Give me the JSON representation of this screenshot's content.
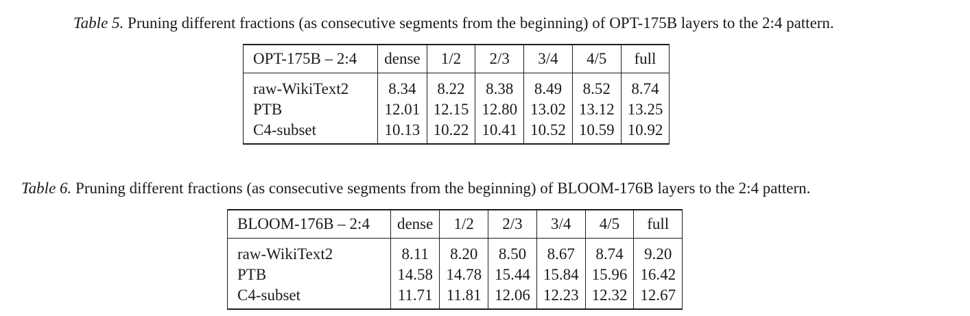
{
  "tables": [
    {
      "caption_tag": "Table 5.",
      "caption_text": " Pruning different fractions (as consecutive segments from the beginning) of OPT-175B layers to the 2:4 pattern.",
      "columns": [
        "OPT-175B – 2:4",
        "dense",
        "1/2",
        "2/3",
        "3/4",
        "4/5",
        "full"
      ],
      "rows": [
        [
          "raw-WikiText2",
          "8.34",
          "8.22",
          "8.38",
          "8.49",
          "8.52",
          "8.74"
        ],
        [
          "PTB",
          "12.01",
          "12.15",
          "12.80",
          "13.02",
          "13.12",
          "13.25"
        ],
        [
          "C4-subset",
          "10.13",
          "10.22",
          "10.41",
          "10.52",
          "10.59",
          "10.92"
        ]
      ]
    },
    {
      "caption_tag": "Table 6.",
      "caption_text": " Pruning different fractions (as consecutive segments from the beginning) of BLOOM-176B layers to the 2:4 pattern.",
      "columns": [
        "BLOOM-176B – 2:4",
        "dense",
        "1/2",
        "2/3",
        "3/4",
        "4/5",
        "full"
      ],
      "rows": [
        [
          "raw-WikiText2",
          "8.11",
          "8.20",
          "8.50",
          "8.67",
          "8.74",
          "9.20"
        ],
        [
          "PTB",
          "14.58",
          "14.78",
          "15.44",
          "15.84",
          "15.96",
          "16.42"
        ],
        [
          "C4-subset",
          "11.71",
          "11.81",
          "12.06",
          "12.23",
          "12.32",
          "12.67"
        ]
      ]
    }
  ]
}
